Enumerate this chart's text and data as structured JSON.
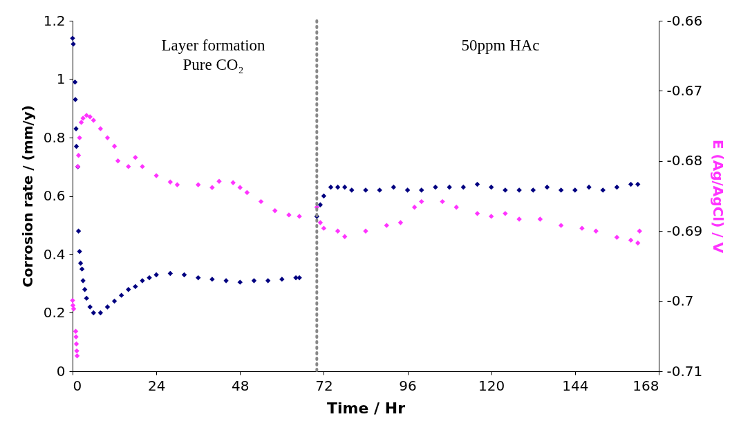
{
  "chart_data": {
    "type": "scatter",
    "xlabel": "Time / Hr",
    "ylabel": "Corrosion rate / (mm/y)",
    "y2label": "E (Ag/AgCl) / V",
    "xlim": [
      0,
      168
    ],
    "xticks": [
      0,
      24,
      48,
      72,
      96,
      120,
      144,
      168
    ],
    "ylim": [
      0,
      1.2
    ],
    "yticks": [
      0,
      0.2,
      0.4,
      0.6,
      0.8,
      1,
      1.2
    ],
    "y2lim": [
      -0.71,
      -0.66
    ],
    "y2ticks": [
      -0.71,
      -0.7,
      -0.69,
      -0.68,
      -0.67,
      -0.66
    ],
    "grid": false,
    "marker": "diamond",
    "annotations": [
      "Layer formation\nPure CO₂",
      "50ppm HAc"
    ],
    "ref_lines": [
      {
        "axis": "x",
        "value": 70,
        "color": "#888888",
        "line_style": "dotted"
      }
    ],
    "series": [
      {
        "color": "#000080",
        "x": [
          0,
          0.2,
          0.7,
          0.8,
          1,
          1.1,
          1.5,
          1.7,
          2,
          2.3,
          2.7,
          3,
          3.5,
          4,
          5,
          6,
          8,
          10,
          12,
          14,
          16,
          18,
          20,
          22,
          24,
          28,
          32,
          36,
          40,
          44,
          48,
          52,
          56,
          60,
          64,
          65,
          70,
          71,
          72,
          74,
          76,
          78,
          80,
          84,
          88,
          92,
          96,
          100,
          104,
          108,
          112,
          116,
          120,
          124,
          128,
          132,
          136,
          140,
          144,
          148,
          152,
          156,
          160,
          162
        ],
        "values": [
          1.14,
          1.12,
          0.99,
          0.93,
          0.83,
          0.77,
          0.7,
          0.48,
          0.41,
          0.37,
          0.35,
          0.31,
          0.28,
          0.25,
          0.22,
          0.2,
          0.2,
          0.22,
          0.24,
          0.26,
          0.28,
          0.29,
          0.31,
          0.32,
          0.33,
          0.335,
          0.33,
          0.32,
          0.315,
          0.31,
          0.305,
          0.31,
          0.31,
          0.315,
          0.32,
          0.32,
          0.53,
          0.57,
          0.6,
          0.63,
          0.63,
          0.63,
          0.62,
          0.62,
          0.62,
          0.63,
          0.62,
          0.62,
          0.63,
          0.63,
          0.63,
          0.64,
          0.63,
          0.62,
          0.62,
          0.62,
          0.63,
          0.62,
          0.62,
          0.63,
          0.62,
          0.63,
          0.64,
          0.64
        ]
      },
      {
        "color": "#ff33ff",
        "axis": "y2",
        "x": [
          0,
          0.1,
          0.3,
          0.9,
          1,
          1.1,
          1.2,
          1.3,
          1.5,
          1.7,
          2,
          2.5,
          3,
          4,
          5,
          6,
          8,
          10,
          12,
          13,
          16,
          18,
          20,
          24,
          28,
          30,
          36,
          40,
          42,
          46,
          48,
          50,
          54,
          58,
          62,
          65,
          70,
          71,
          72,
          76,
          78,
          84,
          90,
          94,
          98,
          100,
          106,
          110,
          116,
          120,
          124,
          128,
          134,
          140,
          146,
          150,
          156,
          160,
          162,
          162.5
        ],
        "values": [
          -0.6999,
          -0.7006,
          -0.7011,
          -0.7043,
          -0.7051,
          -0.7061,
          -0.7071,
          -0.7078,
          -0.6808,
          -0.6792,
          -0.6767,
          -0.6745,
          -0.6739,
          -0.6735,
          -0.6737,
          -0.6742,
          -0.6754,
          -0.6767,
          -0.6779,
          -0.68,
          -0.6808,
          -0.6795,
          -0.6808,
          -0.6821,
          -0.683,
          -0.6834,
          -0.6834,
          -0.6838,
          -0.6829,
          -0.6831,
          -0.6838,
          -0.6845,
          -0.6858,
          -0.6871,
          -0.6877,
          -0.6879,
          -0.6866,
          -0.6888,
          -0.6896,
          -0.69,
          -0.6908,
          -0.69,
          -0.6892,
          -0.6888,
          -0.6866,
          -0.6858,
          -0.6858,
          -0.6866,
          -0.6875,
          -0.6879,
          -0.6875,
          -0.6883,
          -0.6883,
          -0.6892,
          -0.6896,
          -0.69,
          -0.6909,
          -0.6913,
          -0.6917,
          -0.69
        ]
      }
    ]
  }
}
